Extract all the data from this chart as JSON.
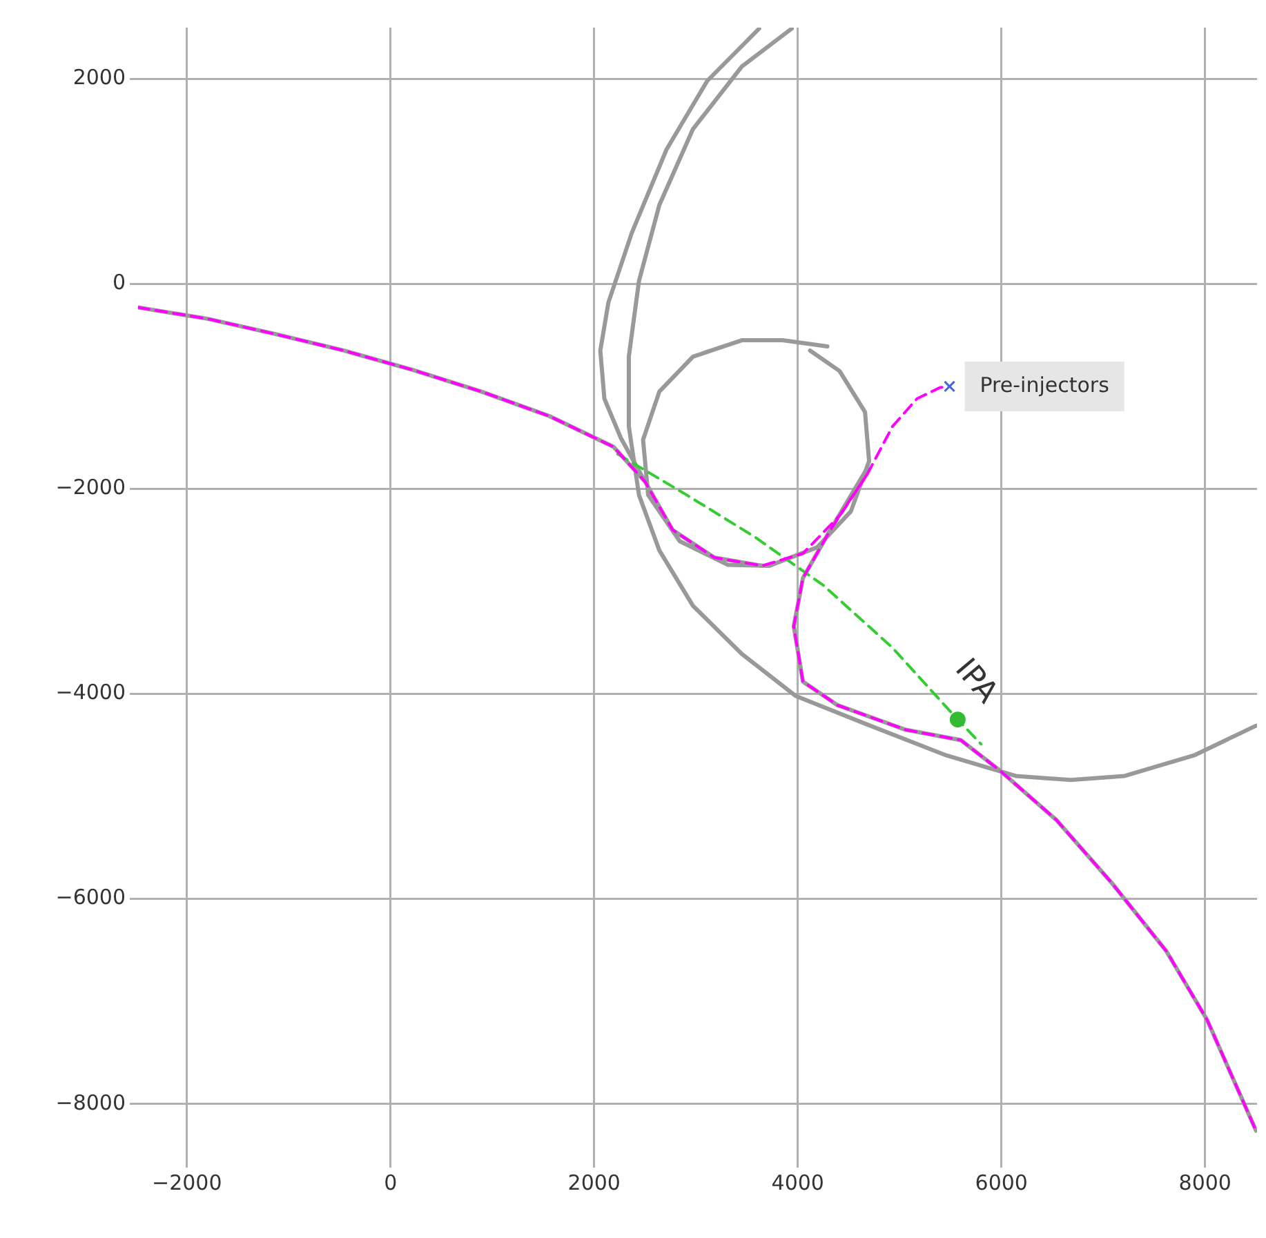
{
  "chart_data": {
    "type": "line",
    "xlim": [
      -2480,
      8510
    ],
    "ylim": [
      -8540,
      2500
    ],
    "xticks": [
      -2000,
      0,
      2000,
      4000,
      6000,
      8000
    ],
    "yticks": [
      -8000,
      -6000,
      -4000,
      -2000,
      0,
      2000
    ],
    "grid": true,
    "legend": false,
    "marker": "none",
    "series": [
      {
        "color": "#999999",
        "line_style": "solid",
        "x": [
          3940,
          3450,
          2970,
          2640,
          2440,
          2340,
          2340,
          2440,
          2640,
          2970,
          3450,
          3980,
          4660,
          5460,
          6140,
          6680,
          7210,
          7890,
          8500
        ],
        "values": [
          2490,
          2120,
          1510,
          770,
          30,
          -710,
          -1390,
          -2060,
          -2600,
          -3140,
          -3610,
          -4020,
          -4290,
          -4600,
          -4800,
          -4840,
          -4800,
          -4600,
          -4310
        ]
      },
      {
        "color": "#999999",
        "line_style": "solid",
        "x": [
          3620,
          3110,
          2710,
          2370,
          2140,
          2060,
          2100,
          2260,
          2500
        ],
        "values": [
          2490,
          1980,
          1310,
          500,
          -180,
          -650,
          -1120,
          -1500,
          -1930
        ]
      },
      {
        "color": "#999999",
        "line_style": "solid",
        "x": [
          4290,
          3850,
          3450,
          2970,
          2640,
          2480,
          2530,
          2840,
          3310,
          3720,
          4190,
          4520,
          4700,
          4660,
          4410,
          4120
        ],
        "values": [
          -610,
          -550,
          -550,
          -710,
          -1050,
          -1520,
          -2060,
          -2510,
          -2740,
          -2750,
          -2570,
          -2220,
          -1730,
          -1250,
          -850,
          -650
        ]
      },
      {
        "color": "#999999",
        "line_style": "solid",
        "x": [
          -2480,
          -1800,
          -1130,
          -460,
          220,
          890,
          1560,
          2190,
          2500,
          2770,
          3180,
          3650
        ],
        "values": [
          -230,
          -340,
          -490,
          -650,
          -840,
          -1050,
          -1290,
          -1590,
          -1930,
          -2400,
          -2670,
          -2750
        ]
      },
      {
        "color": "#999999",
        "line_style": "solid",
        "x": [
          4680,
          4320,
          4050,
          3960,
          4050,
          4390,
          5060,
          5600,
          6000,
          6540,
          7080,
          7620,
          8020,
          8500
        ],
        "values": [
          -1800,
          -2400,
          -2870,
          -3340,
          -3880,
          -4110,
          -4350,
          -4450,
          -4760,
          -5230,
          -5840,
          -6510,
          -7180,
          -8260
        ]
      },
      {
        "color": "#33cc33",
        "line_style": "dashed",
        "x": [
          2230,
          2910,
          3580,
          4250,
          4930,
          5570,
          5800
        ],
        "values": [
          -1660,
          -2060,
          -2470,
          -2940,
          -3550,
          -4250,
          -4490
        ]
      },
      {
        "color": "#ff00ff",
        "line_style": "dashed",
        "x": [
          -2480,
          -1800,
          -1130,
          -460,
          220,
          890,
          1560,
          2190,
          2500,
          2770,
          3180,
          3650,
          4050,
          4410,
          4680,
          4930,
          5170,
          5400,
          5490
        ],
        "values": [
          -230,
          -340,
          -490,
          -650,
          -840,
          -1050,
          -1290,
          -1590,
          -1930,
          -2400,
          -2670,
          -2750,
          -2630,
          -2260,
          -1860,
          -1390,
          -1120,
          -1010,
          -1000
        ]
      },
      {
        "color": "#ff00ff",
        "line_style": "dashed",
        "x": [
          4680,
          4320,
          4050,
          3960,
          4050,
          4390,
          5060,
          5600,
          6000,
          6540,
          7080,
          7620,
          8020,
          8500
        ],
        "values": [
          -1860,
          -2400,
          -2870,
          -3340,
          -3880,
          -4110,
          -4350,
          -4450,
          -4760,
          -5230,
          -5840,
          -6510,
          -7180,
          -8260
        ]
      },
      {
        "type": "scatter",
        "color": "#33bb33",
        "marker": "circle",
        "x": [
          5570
        ],
        "values": [
          -4250
        ]
      },
      {
        "type": "scatter",
        "color": "#4466dd",
        "marker": "cross",
        "x": [
          5490
        ],
        "values": [
          -1000
        ]
      }
    ],
    "annotations": [
      {
        "text": "Pre-injectors",
        "x": 5490,
        "y": -1000
      },
      {
        "text": "IPA",
        "x": 5570,
        "y": -4250
      }
    ]
  }
}
